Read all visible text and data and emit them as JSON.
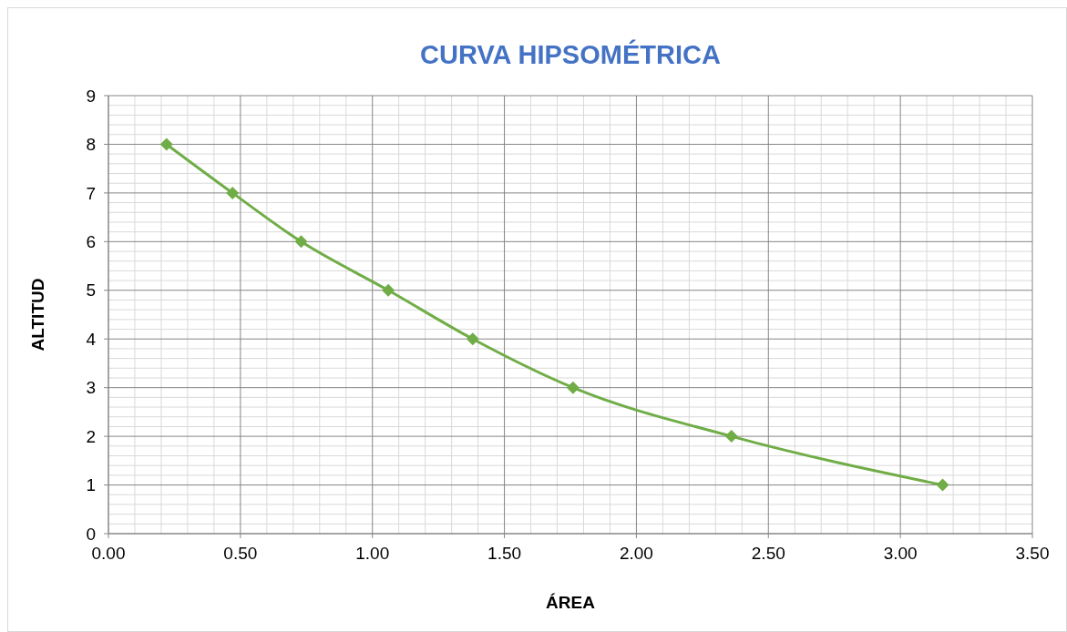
{
  "chart_data": {
    "type": "line",
    "title": "CURVA HIPSOMÉTRICA",
    "xlabel": "ÁREA",
    "ylabel": "ALTITUD",
    "x": [
      0.22,
      0.47,
      0.73,
      1.06,
      1.38,
      1.76,
      2.36,
      3.16
    ],
    "series": [
      {
        "color": "#70ad47",
        "values": [
          8,
          7,
          6,
          5,
          4,
          3,
          2,
          1
        ]
      }
    ],
    "xlim": [
      0,
      3.5
    ],
    "xticks": [
      {
        "value": 0,
        "label": "0.00"
      },
      {
        "value": 0.5,
        "label": "0.50"
      },
      {
        "value": 1,
        "label": "1.00"
      },
      {
        "value": 1.5,
        "label": "1.50"
      },
      {
        "value": 2,
        "label": "2.00"
      },
      {
        "value": 2.5,
        "label": "2.50"
      },
      {
        "value": 3,
        "label": "3.00"
      },
      {
        "value": 3.5,
        "label": "3.50"
      }
    ],
    "ylim": [
      0,
      9
    ],
    "yticks": [
      0,
      1,
      2,
      3,
      4,
      5,
      6,
      7,
      8,
      9
    ],
    "grid": true,
    "marker": "diamond",
    "line_style": "solid"
  }
}
